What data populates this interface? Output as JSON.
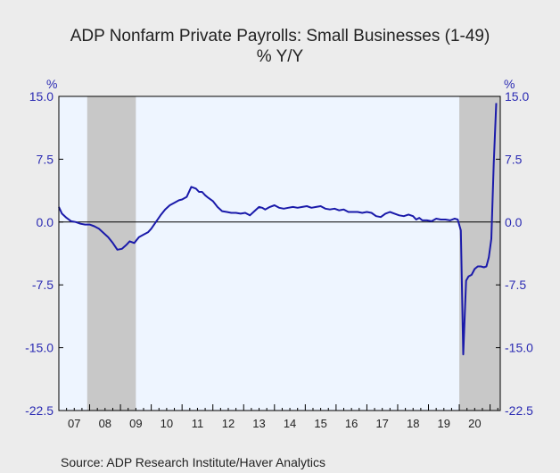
{
  "chart_data": {
    "type": "line",
    "title": "ADP Nonfarm Private Payrolls: Small Businesses (1-49)",
    "subtitle": "% Y/Y",
    "ylabel_left": "%",
    "ylabel_right": "%",
    "ylim": [
      -22.5,
      15.0
    ],
    "yticks": [
      15.0,
      7.5,
      0.0,
      -7.5,
      -15.0,
      -22.5
    ],
    "ytick_labels": [
      "15.0",
      "7.5",
      "0.0",
      "-7.5",
      "-15.0",
      "-22.5"
    ],
    "xlim": [
      2007.0,
      2021.33
    ],
    "xtick_labels": [
      "07",
      "08",
      "09",
      "10",
      "11",
      "12",
      "13",
      "14",
      "15",
      "16",
      "17",
      "18",
      "19",
      "20"
    ],
    "recessions": [
      [
        2007.92,
        2009.5
      ],
      [
        2020.0,
        2021.33
      ]
    ],
    "zero_line": true,
    "grid": false,
    "series": [
      {
        "color": "#1a1aaa",
        "x": [
          2007.0,
          2007.1,
          2007.25,
          2007.4,
          2007.55,
          2007.7,
          2007.85,
          2008.0,
          2008.15,
          2008.3,
          2008.45,
          2008.6,
          2008.75,
          2008.9,
          2009.05,
          2009.2,
          2009.3,
          2009.45,
          2009.6,
          2009.75,
          2009.9,
          2010.0,
          2010.15,
          2010.3,
          2010.45,
          2010.6,
          2010.75,
          2010.9,
          2011.0,
          2011.15,
          2011.3,
          2011.45,
          2011.55,
          2011.65,
          2011.75,
          2011.85,
          2012.0,
          2012.15,
          2012.3,
          2012.45,
          2012.6,
          2012.75,
          2012.9,
          2013.05,
          2013.2,
          2013.35,
          2013.5,
          2013.6,
          2013.7,
          2013.85,
          2014.0,
          2014.15,
          2014.3,
          2014.45,
          2014.6,
          2014.75,
          2014.9,
          2015.05,
          2015.2,
          2015.35,
          2015.5,
          2015.65,
          2015.8,
          2015.95,
          2016.1,
          2016.25,
          2016.4,
          2016.55,
          2016.7,
          2016.85,
          2017.0,
          2017.15,
          2017.3,
          2017.45,
          2017.6,
          2017.75,
          2017.9,
          2018.05,
          2018.2,
          2018.35,
          2018.5,
          2018.6,
          2018.7,
          2018.8,
          2018.95,
          2019.1,
          2019.25,
          2019.4,
          2019.55,
          2019.7,
          2019.85,
          2019.95,
          2020.05,
          2020.13,
          2020.22,
          2020.3,
          2020.4,
          2020.5,
          2020.6,
          2020.7,
          2020.8,
          2020.88,
          2020.96,
          2021.04,
          2021.12,
          2021.2
        ],
        "y": [
          1.8,
          1.0,
          0.5,
          0.1,
          0.0,
          -0.2,
          -0.3,
          -0.3,
          -0.5,
          -0.8,
          -1.3,
          -1.8,
          -2.5,
          -3.3,
          -3.2,
          -2.7,
          -2.3,
          -2.5,
          -1.8,
          -1.5,
          -1.2,
          -0.8,
          0.0,
          0.8,
          1.5,
          2.0,
          2.3,
          2.6,
          2.7,
          3.0,
          4.2,
          4.0,
          3.6,
          3.6,
          3.2,
          2.9,
          2.5,
          1.8,
          1.3,
          1.2,
          1.1,
          1.1,
          1.0,
          1.1,
          0.8,
          1.3,
          1.8,
          1.7,
          1.5,
          1.8,
          2.0,
          1.7,
          1.6,
          1.7,
          1.8,
          1.7,
          1.8,
          1.9,
          1.7,
          1.8,
          1.9,
          1.6,
          1.5,
          1.6,
          1.4,
          1.5,
          1.2,
          1.2,
          1.2,
          1.1,
          1.2,
          1.1,
          0.7,
          0.6,
          1.0,
          1.2,
          1.0,
          0.8,
          0.7,
          0.9,
          0.7,
          0.3,
          0.5,
          0.2,
          0.2,
          0.1,
          0.4,
          0.3,
          0.3,
          0.2,
          0.4,
          0.3,
          -1.0,
          -15.8,
          -7.0,
          -6.5,
          -6.3,
          -5.6,
          -5.3,
          -5.3,
          -5.4,
          -5.3,
          -4.2,
          -2.0,
          7.0,
          14.2
        ]
      }
    ]
  },
  "source": "Source:  ADP Research Institute/Haver Analytics"
}
